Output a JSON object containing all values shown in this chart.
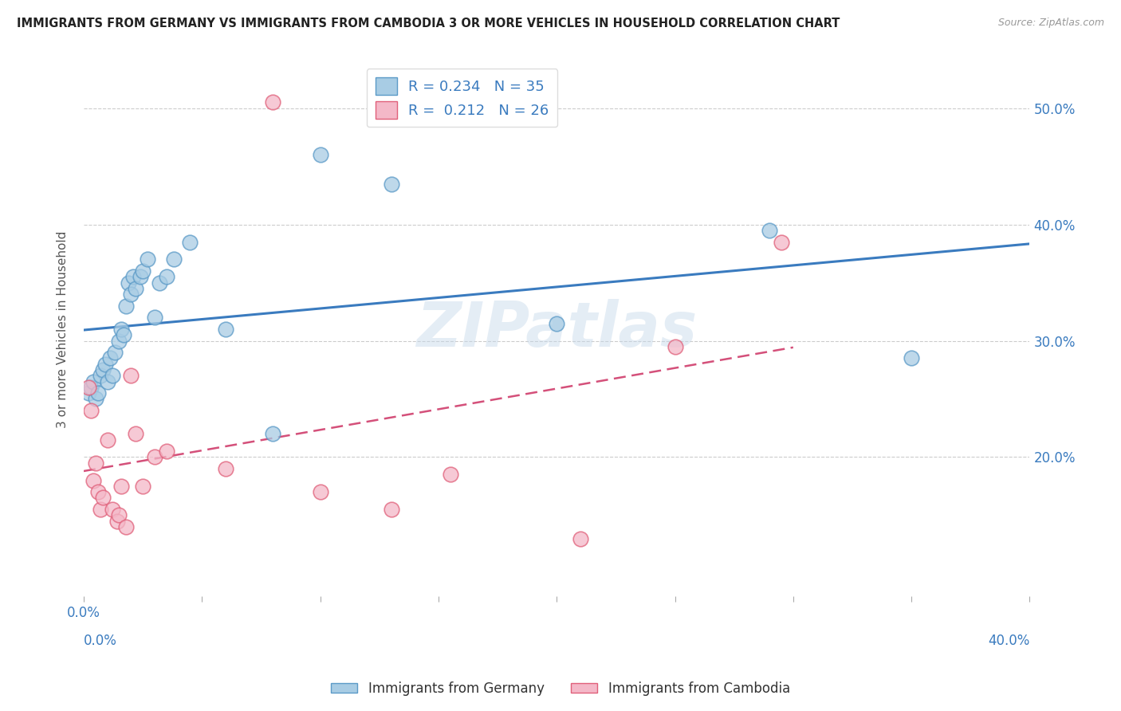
{
  "title": "IMMIGRANTS FROM GERMANY VS IMMIGRANTS FROM CAMBODIA 3 OR MORE VEHICLES IN HOUSEHOLD CORRELATION CHART",
  "source": "Source: ZipAtlas.com",
  "ylabel": "3 or more Vehicles in Household",
  "xlim": [
    0.0,
    0.4
  ],
  "ylim": [
    0.08,
    0.54
  ],
  "ytick_values": [
    0.2,
    0.3,
    0.4,
    0.5
  ],
  "xtick_values": [
    0.0,
    0.05,
    0.1,
    0.15,
    0.2,
    0.25,
    0.3,
    0.35,
    0.4
  ],
  "legend_series1": "Immigrants from Germany",
  "legend_series2": "Immigrants from Cambodia",
  "watermark": "ZIPatlas",
  "blue_color": "#a8cce4",
  "pink_color": "#f4b8c8",
  "blue_edge_color": "#5b9ac7",
  "pink_edge_color": "#e0607a",
  "blue_line_color": "#3a7bbf",
  "pink_line_color": "#d4507a",
  "germany_x": [
    0.002,
    0.003,
    0.004,
    0.005,
    0.006,
    0.007,
    0.008,
    0.009,
    0.01,
    0.011,
    0.012,
    0.013,
    0.015,
    0.016,
    0.017,
    0.018,
    0.019,
    0.02,
    0.021,
    0.022,
    0.024,
    0.025,
    0.027,
    0.03,
    0.032,
    0.035,
    0.038,
    0.045,
    0.06,
    0.08,
    0.1,
    0.13,
    0.2,
    0.29,
    0.35
  ],
  "germany_y": [
    0.255,
    0.26,
    0.265,
    0.25,
    0.255,
    0.27,
    0.275,
    0.28,
    0.265,
    0.285,
    0.27,
    0.29,
    0.3,
    0.31,
    0.305,
    0.33,
    0.35,
    0.34,
    0.355,
    0.345,
    0.355,
    0.36,
    0.37,
    0.32,
    0.35,
    0.355,
    0.37,
    0.385,
    0.31,
    0.22,
    0.46,
    0.435,
    0.315,
    0.395,
    0.285
  ],
  "cambodia_x": [
    0.002,
    0.003,
    0.004,
    0.005,
    0.006,
    0.007,
    0.008,
    0.01,
    0.012,
    0.014,
    0.015,
    0.016,
    0.018,
    0.02,
    0.022,
    0.025,
    0.03,
    0.035,
    0.06,
    0.08,
    0.1,
    0.13,
    0.155,
    0.21,
    0.25,
    0.295
  ],
  "cambodia_y": [
    0.26,
    0.24,
    0.18,
    0.195,
    0.17,
    0.155,
    0.165,
    0.215,
    0.155,
    0.145,
    0.15,
    0.175,
    0.14,
    0.27,
    0.22,
    0.175,
    0.2,
    0.205,
    0.19,
    0.505,
    0.17,
    0.155,
    0.185,
    0.13,
    0.295,
    0.385
  ]
}
